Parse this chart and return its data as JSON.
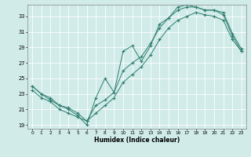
{
  "xlabel": "Humidex (Indice chaleur)",
  "xlim": [
    -0.5,
    23.5
  ],
  "ylim": [
    18.5,
    34.5
  ],
  "xticks": [
    0,
    1,
    2,
    3,
    4,
    5,
    6,
    7,
    8,
    9,
    10,
    11,
    12,
    13,
    14,
    15,
    16,
    17,
    18,
    19,
    20,
    21,
    22,
    23
  ],
  "yticks": [
    19,
    21,
    23,
    25,
    27,
    29,
    31,
    33
  ],
  "background_color": "#d0ebe8",
  "line_color": "#2e7d6e",
  "line1_y": [
    24.0,
    23.0,
    22.2,
    21.5,
    21.0,
    20.2,
    19.0,
    22.5,
    25.0,
    23.2,
    28.5,
    29.2,
    27.2,
    29.2,
    32.0,
    32.8,
    34.2,
    34.5,
    34.2,
    33.8,
    33.8,
    33.2,
    30.5,
    28.5
  ],
  "line2_y": [
    24.0,
    23.0,
    22.5,
    21.5,
    21.2,
    20.5,
    19.5,
    21.5,
    22.2,
    23.2,
    26.0,
    27.0,
    27.8,
    29.5,
    31.5,
    32.8,
    33.8,
    34.2,
    34.2,
    33.8,
    33.8,
    33.5,
    30.8,
    28.8
  ],
  "line3_y": [
    23.5,
    22.5,
    22.0,
    21.0,
    20.5,
    20.0,
    19.5,
    20.5,
    21.5,
    22.5,
    24.5,
    25.5,
    26.5,
    28.0,
    30.0,
    31.5,
    32.5,
    33.0,
    33.5,
    33.2,
    33.0,
    32.5,
    30.0,
    28.5
  ]
}
